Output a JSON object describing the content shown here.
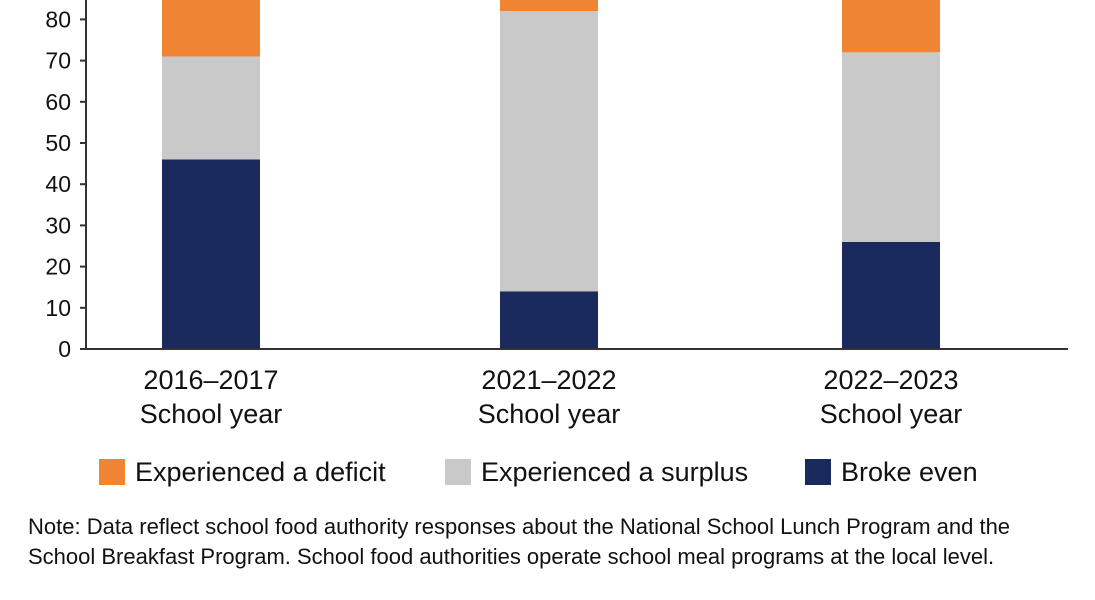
{
  "chart_data": {
    "type": "bar",
    "stacked": true,
    "categories": [
      [
        "2016–2017",
        "School year"
      ],
      [
        "2021–2022",
        "School year"
      ],
      [
        "2022–2023",
        "School year"
      ]
    ],
    "series": [
      {
        "name": "Broke even",
        "color": "#1b2a5c",
        "values": [
          46,
          14,
          26
        ]
      },
      {
        "name": "Experienced a surplus",
        "color": "#c9c9c9",
        "values": [
          25,
          68,
          46
        ]
      },
      {
        "name": "Experienced a deficit",
        "color": "#ef8533",
        "values": [
          29,
          18,
          28
        ]
      }
    ],
    "yticks": [
      0,
      10,
      20,
      30,
      40,
      50,
      60,
      70,
      80
    ],
    "ylim": [
      0,
      100
    ],
    "legend_position": "bottom"
  },
  "legend": [
    {
      "label": "Experienced a deficit",
      "color": "#ef8533"
    },
    {
      "label": "Experienced a surplus",
      "color": "#c9c9c9"
    },
    {
      "label": "Broke even",
      "color": "#1b2a5c"
    }
  ],
  "note": "Note: Data reflect school food authority responses about the National School Lunch Program and the School Breakfast Program. School food authorities operate school meal programs at the local level."
}
